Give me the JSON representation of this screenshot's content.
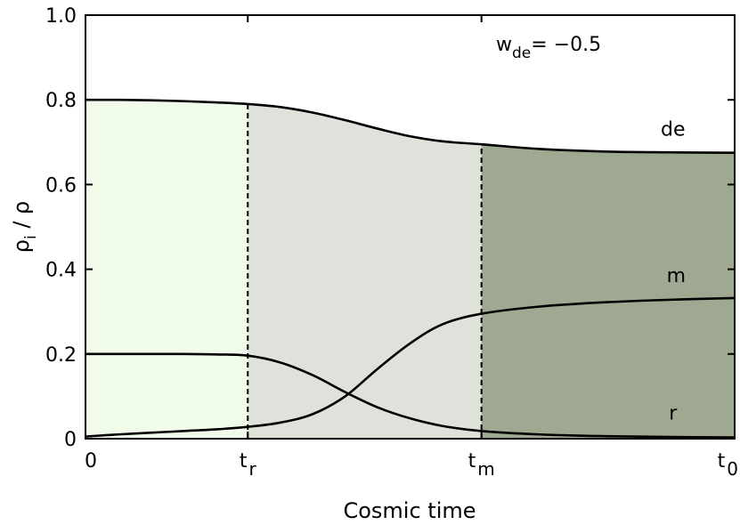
{
  "chart_data": {
    "type": "line",
    "title": "",
    "xlabel": "Cosmic time",
    "ylabel": {
      "rho": "ρ",
      "sub": "i",
      "rest": " / ρ"
    },
    "annotation": {
      "w": "w",
      "sub": "de",
      "rest": "= −0.5"
    },
    "xlim": [
      0,
      1
    ],
    "ylim": [
      0,
      1
    ],
    "yticks": [
      {
        "value": 0,
        "label": "0"
      },
      {
        "value": 0.2,
        "label": "0.2"
      },
      {
        "value": 0.4,
        "label": "0.4"
      },
      {
        "value": 0.6,
        "label": "0.6"
      },
      {
        "value": 0.8,
        "label": "0.8"
      },
      {
        "value": 1.0,
        "label": "1.0"
      }
    ],
    "xticks": [
      {
        "value": 0,
        "main": "0",
        "sub": ""
      },
      {
        "value": 0.25,
        "main": "t",
        "sub": "r"
      },
      {
        "value": 0.61,
        "main": "t",
        "sub": "m"
      },
      {
        "value": 1.0,
        "main": "t",
        "sub": "0"
      }
    ],
    "vlines": [
      0.25,
      0.61
    ],
    "regions": [
      {
        "from": 0,
        "to": 0.25,
        "color": "#f1fbea"
      },
      {
        "from": 0.25,
        "to": 0.61,
        "color": "#dfe2da"
      },
      {
        "from": 0.61,
        "to": 1.0,
        "color": "#9fa890"
      }
    ],
    "series": [
      {
        "name": "de",
        "x": [
          0,
          0.05,
          0.1,
          0.15,
          0.2,
          0.25,
          0.3,
          0.35,
          0.4,
          0.45,
          0.5,
          0.55,
          0.61,
          0.7,
          0.8,
          0.9,
          1.0
        ],
        "y": [
          0.8,
          0.8,
          0.799,
          0.797,
          0.794,
          0.79,
          0.783,
          0.77,
          0.752,
          0.732,
          0.714,
          0.702,
          0.695,
          0.684,
          0.678,
          0.676,
          0.675
        ]
      },
      {
        "name": "m",
        "x": [
          0,
          0.05,
          0.1,
          0.15,
          0.2,
          0.25,
          0.3,
          0.35,
          0.4,
          0.45,
          0.5,
          0.55,
          0.61,
          0.7,
          0.8,
          0.9,
          1.0
        ],
        "y": [
          0.005,
          0.01,
          0.014,
          0.018,
          0.022,
          0.028,
          0.038,
          0.058,
          0.1,
          0.165,
          0.225,
          0.27,
          0.295,
          0.312,
          0.322,
          0.328,
          0.332
        ]
      },
      {
        "name": "r",
        "x": [
          0,
          0.05,
          0.1,
          0.15,
          0.2,
          0.25,
          0.3,
          0.35,
          0.4,
          0.45,
          0.5,
          0.55,
          0.61,
          0.7,
          0.8,
          0.9,
          1.0
        ],
        "y": [
          0.2,
          0.2,
          0.2,
          0.2,
          0.199,
          0.196,
          0.18,
          0.15,
          0.11,
          0.074,
          0.048,
          0.03,
          0.018,
          0.01,
          0.006,
          0.004,
          0.003
        ]
      }
    ],
    "curve_labels": [
      {
        "text": "de",
        "x": 0.905,
        "y": 0.715
      },
      {
        "text": "m",
        "x": 0.91,
        "y": 0.37
      },
      {
        "text": "r",
        "x": 0.905,
        "y": 0.045
      }
    ],
    "grid": false,
    "legend": "none"
  }
}
